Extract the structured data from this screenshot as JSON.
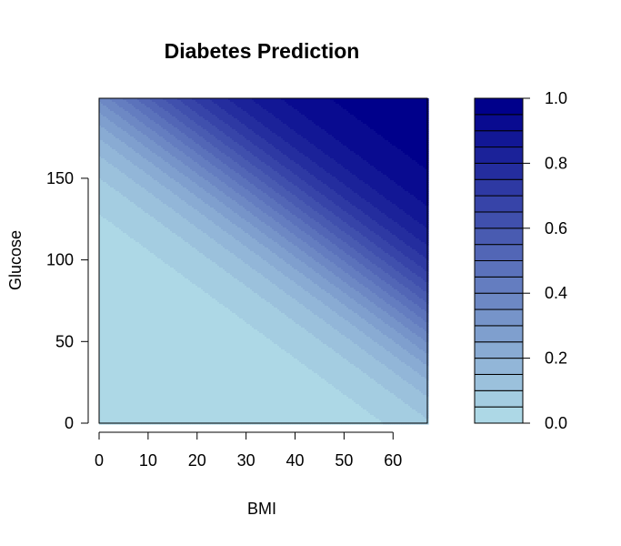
{
  "chart_data": {
    "type": "heatmap",
    "subtype": "filled-contour",
    "title": "Diabetes Prediction",
    "xlabel": "BMI",
    "ylabel": "Glucose",
    "xlim": [
      0,
      67
    ],
    "ylim": [
      0,
      199
    ],
    "x_ticks": [
      "0",
      "10",
      "20",
      "30",
      "40",
      "50",
      "60"
    ],
    "y_ticks": [
      "0",
      "50",
      "100",
      "150"
    ],
    "z_range": [
      0,
      1
    ],
    "z_step": 0.05,
    "color_low": "#add8e6",
    "color_high": "#00008b",
    "legend": {
      "placement": "right",
      "ticks": [
        "0.0",
        "0.2",
        "0.4",
        "0.6",
        "0.8",
        "1.0"
      ]
    },
    "contours": {
      "note_values": "approximate probability isolines: level 0.05 passes (0,128) and (58,0); level 0.95 passes (45,199) and (67,155)",
      "p05_intercept_glucose": 128,
      "p05_intercept_bmi": 58,
      "p95_at_bmi_67_glucose": 155,
      "p95_at_glucose_199_bmi": 45
    }
  }
}
